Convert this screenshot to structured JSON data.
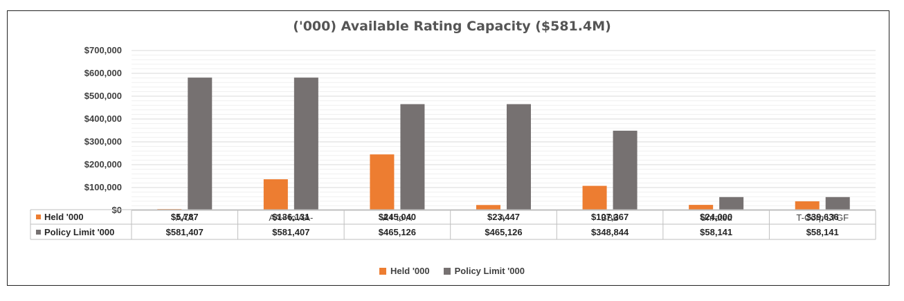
{
  "chart_data": {
    "type": "bar",
    "title": "('000) Available Rating Capacity ($581.4M)",
    "categories": [
      "AAA",
      "AA+ to AA-",
      "A+ to A",
      "A-",
      "BBB",
      "Unrated",
      "T-Corp LTGF"
    ],
    "series": [
      {
        "name": "Held '000",
        "color": "#ED7D31",
        "values": [
          5787,
          136131,
          245040,
          23447,
          107367,
          24000,
          39636
        ],
        "labels": [
          "$5,787",
          "$136,131",
          "$245,040",
          "$23,447",
          "$107,367",
          "$24,000",
          "$39,636"
        ]
      },
      {
        "name": "Policy Limit '000",
        "color": "#767171",
        "values": [
          581407,
          581407,
          465126,
          465126,
          348844,
          58141,
          58141
        ],
        "labels": [
          "$581,407",
          "$581,407",
          "$465,126",
          "$465,126",
          "$348,844",
          "$58,141",
          "$58,141"
        ]
      }
    ],
    "ylim": [
      0,
      700000
    ],
    "yticks": [
      "$0",
      "$100,000",
      "$200,000",
      "$300,000",
      "$400,000",
      "$500,000",
      "$600,000",
      "$700,000"
    ],
    "ytick_values": [
      0,
      100000,
      200000,
      300000,
      400000,
      500000,
      600000,
      700000
    ],
    "grid": true,
    "data_table": true,
    "legend_position": "bottom"
  }
}
